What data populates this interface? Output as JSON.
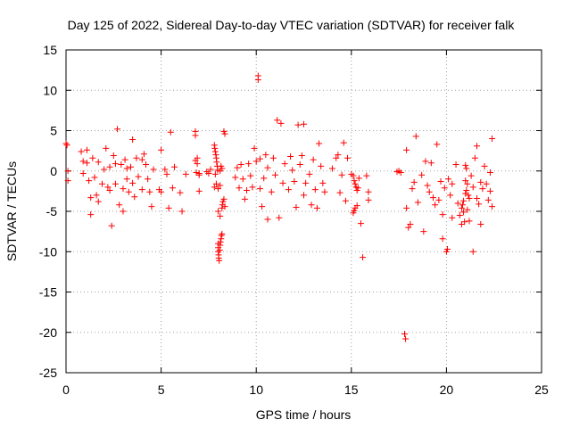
{
  "chart_data": {
    "type": "scatter",
    "title": "Day 125 of 2022, Sidereal Day-to-day VTEC variation (SDTVAR) for receiver falk",
    "xlabel": "GPS time / hours",
    "ylabel": "SDTVAR / TECUs",
    "xlim": [
      0,
      25
    ],
    "ylim": [
      -25,
      15
    ],
    "xticks": [
      0,
      5,
      10,
      15,
      20,
      25
    ],
    "yticks": [
      -25,
      -20,
      -15,
      -10,
      -5,
      0,
      5,
      10,
      15
    ],
    "grid": true,
    "marker": "plus",
    "color": "#ff0000",
    "series": [
      {
        "name": "SDTVAR",
        "points": [
          [
            0.0,
            3.4
          ],
          [
            0.05,
            3.2
          ],
          [
            0.1,
            0.0
          ],
          [
            0.1,
            -1.2
          ],
          [
            0.8,
            2.4
          ],
          [
            0.9,
            1.2
          ],
          [
            0.9,
            -0.3
          ],
          [
            1.1,
            2.6
          ],
          [
            1.1,
            1.0
          ],
          [
            1.2,
            -1.2
          ],
          [
            1.3,
            -3.3
          ],
          [
            1.3,
            -5.4
          ],
          [
            1.4,
            1.6
          ],
          [
            1.5,
            -0.8
          ],
          [
            1.6,
            -3.0
          ],
          [
            1.7,
            -3.8
          ],
          [
            1.7,
            1.1
          ],
          [
            1.9,
            -1.6
          ],
          [
            2.0,
            0.2
          ],
          [
            2.1,
            2.8
          ],
          [
            2.2,
            -2.0
          ],
          [
            2.3,
            -2.4
          ],
          [
            2.3,
            0.5
          ],
          [
            2.4,
            -6.8
          ],
          [
            2.5,
            1.9
          ],
          [
            2.6,
            0.9
          ],
          [
            2.6,
            -1.6
          ],
          [
            2.7,
            5.2
          ],
          [
            2.8,
            -4.2
          ],
          [
            2.9,
            0.8
          ],
          [
            3.0,
            -5.0
          ],
          [
            3.0,
            -2.2
          ],
          [
            3.1,
            1.4
          ],
          [
            3.2,
            0.3
          ],
          [
            3.2,
            -1.0
          ],
          [
            3.3,
            -2.6
          ],
          [
            3.4,
            0.5
          ],
          [
            3.5,
            3.9
          ],
          [
            3.5,
            -1.5
          ],
          [
            3.6,
            -3.2
          ],
          [
            3.7,
            1.6
          ],
          [
            3.8,
            -0.7
          ],
          [
            4.0,
            1.4
          ],
          [
            4.0,
            -2.3
          ],
          [
            4.1,
            2.1
          ],
          [
            4.2,
            0.8
          ],
          [
            4.3,
            -1.0
          ],
          [
            4.4,
            -2.6
          ],
          [
            4.5,
            -4.4
          ],
          [
            4.6,
            0.2
          ],
          [
            4.9,
            -2.3
          ],
          [
            5.0,
            2.6
          ],
          [
            5.0,
            -2.6
          ],
          [
            5.2,
            0.2
          ],
          [
            5.3,
            -0.4
          ],
          [
            5.4,
            -4.6
          ],
          [
            5.5,
            4.8
          ],
          [
            5.6,
            -2.1
          ],
          [
            5.7,
            0.5
          ],
          [
            6.0,
            -2.7
          ],
          [
            6.1,
            -5.0
          ],
          [
            6.3,
            -0.4
          ],
          [
            6.8,
            4.9
          ],
          [
            6.8,
            4.4
          ],
          [
            6.8,
            1.3
          ],
          [
            6.9,
            1.6
          ],
          [
            6.9,
            0.9
          ],
          [
            6.85,
            -0.2
          ],
          [
            7.0,
            -0.5
          ],
          [
            7.0,
            -0.3
          ],
          [
            7.0,
            -2.5
          ],
          [
            7.4,
            -0.1
          ],
          [
            7.5,
            -0.3
          ],
          [
            7.6,
            0.2
          ],
          [
            7.8,
            3.2
          ],
          [
            7.82,
            2.8
          ],
          [
            7.85,
            2.4
          ],
          [
            7.88,
            2.0
          ],
          [
            7.9,
            1.6
          ],
          [
            7.92,
            1.1
          ],
          [
            7.95,
            0.6
          ],
          [
            7.97,
            0.1
          ],
          [
            7.85,
            -0.4
          ],
          [
            7.9,
            -1.6
          ],
          [
            7.8,
            -2.0
          ],
          [
            8.0,
            -9.0
          ],
          [
            8.0,
            -9.5
          ],
          [
            8.0,
            -10.0
          ],
          [
            8.02,
            -10.4
          ],
          [
            8.03,
            -10.8
          ],
          [
            8.05,
            -11.1
          ],
          [
            8.08,
            -9.8
          ],
          [
            8.1,
            -9.2
          ],
          [
            8.12,
            -8.8
          ],
          [
            8.15,
            -8.4
          ],
          [
            8.17,
            -8.0
          ],
          [
            8.2,
            -7.8
          ],
          [
            8.2,
            -4.6
          ],
          [
            8.22,
            -4.2
          ],
          [
            8.25,
            -3.8
          ],
          [
            8.3,
            -3.5
          ],
          [
            8.0,
            -2.2
          ],
          [
            8.1,
            -1.8
          ],
          [
            8.1,
            0.0
          ],
          [
            8.15,
            0.6
          ],
          [
            8.2,
            0.3
          ],
          [
            8.3,
            4.9
          ],
          [
            8.35,
            4.6
          ],
          [
            8.35,
            -4.4
          ],
          [
            8.0,
            -5.0
          ],
          [
            8.1,
            -5.6
          ],
          [
            8.9,
            -0.8
          ],
          [
            9.0,
            0.4
          ],
          [
            9.1,
            -2.1
          ],
          [
            9.2,
            0.8
          ],
          [
            9.3,
            -1.0
          ],
          [
            9.4,
            -3.5
          ],
          [
            9.5,
            -2.4
          ],
          [
            9.6,
            0.9
          ],
          [
            9.7,
            -0.6
          ],
          [
            9.8,
            -2.0
          ],
          [
            9.9,
            2.8
          ],
          [
            10.0,
            1.2
          ],
          [
            10.1,
            11.8
          ],
          [
            10.1,
            11.3
          ],
          [
            10.2,
            1.5
          ],
          [
            10.2,
            -2.2
          ],
          [
            10.3,
            -4.4
          ],
          [
            10.4,
            -0.9
          ],
          [
            10.5,
            2.0
          ],
          [
            10.6,
            -6.0
          ],
          [
            10.6,
            0.4
          ],
          [
            10.8,
            -2.6
          ],
          [
            10.9,
            1.6
          ],
          [
            11.0,
            -0.5
          ],
          [
            11.1,
            6.3
          ],
          [
            11.2,
            -5.8
          ],
          [
            11.3,
            5.9
          ],
          [
            11.4,
            -1.5
          ],
          [
            11.5,
            0.9
          ],
          [
            11.7,
            -2.3
          ],
          [
            11.8,
            1.8
          ],
          [
            11.9,
            0.1
          ],
          [
            12.0,
            -1.3
          ],
          [
            12.1,
            -4.5
          ],
          [
            12.2,
            5.7
          ],
          [
            12.3,
            0.8
          ],
          [
            12.4,
            1.9
          ],
          [
            12.5,
            5.8
          ],
          [
            12.5,
            -3.0
          ],
          [
            12.6,
            -1.5
          ],
          [
            12.8,
            -0.4
          ],
          [
            12.9,
            -4.2
          ],
          [
            13.0,
            1.4
          ],
          [
            13.1,
            -2.3
          ],
          [
            13.2,
            -4.6
          ],
          [
            13.3,
            3.4
          ],
          [
            13.4,
            0.6
          ],
          [
            13.5,
            -1.5
          ],
          [
            13.6,
            -2.6
          ],
          [
            14.0,
            0.3
          ],
          [
            14.2,
            1.6
          ],
          [
            14.3,
            2.0
          ],
          [
            14.4,
            -2.7
          ],
          [
            14.5,
            -0.5
          ],
          [
            14.6,
            3.5
          ],
          [
            14.7,
            -3.7
          ],
          [
            14.8,
            1.6
          ],
          [
            15.0,
            -0.4
          ],
          [
            15.1,
            -0.6
          ],
          [
            15.15,
            -1.2
          ],
          [
            15.2,
            -1.6
          ],
          [
            15.25,
            -2.0
          ],
          [
            15.3,
            -2.4
          ],
          [
            15.35,
            -2.1
          ],
          [
            15.1,
            -5.2
          ],
          [
            15.15,
            -4.9
          ],
          [
            15.2,
            -4.6
          ],
          [
            15.3,
            -4.3
          ],
          [
            15.4,
            -0.9
          ],
          [
            15.5,
            -6.5
          ],
          [
            15.6,
            -10.7
          ],
          [
            15.8,
            -0.6
          ],
          [
            15.9,
            -2.6
          ],
          [
            15.9,
            -3.6
          ],
          [
            17.4,
            -0.1
          ],
          [
            17.5,
            0.0
          ],
          [
            17.6,
            -0.2
          ],
          [
            17.8,
            -20.2
          ],
          [
            17.85,
            -20.8
          ],
          [
            17.9,
            2.6
          ],
          [
            17.9,
            -4.6
          ],
          [
            18.0,
            -7.0
          ],
          [
            18.1,
            -6.6
          ],
          [
            18.2,
            -2.2
          ],
          [
            18.3,
            -1.4
          ],
          [
            18.4,
            4.3
          ],
          [
            18.5,
            -3.9
          ],
          [
            18.7,
            -0.5
          ],
          [
            18.8,
            -7.5
          ],
          [
            18.9,
            1.2
          ],
          [
            19.0,
            -1.8
          ],
          [
            19.1,
            -2.6
          ],
          [
            19.2,
            1.0
          ],
          [
            19.3,
            -3.3
          ],
          [
            19.4,
            -4.2
          ],
          [
            19.5,
            3.3
          ],
          [
            19.6,
            -3.6
          ],
          [
            19.7,
            -1.3
          ],
          [
            19.8,
            -8.4
          ],
          [
            19.8,
            -5.4
          ],
          [
            19.9,
            -2.1
          ],
          [
            20.0,
            -10.0
          ],
          [
            20.05,
            -9.7
          ],
          [
            20.1,
            -1.0
          ],
          [
            20.2,
            -3.0
          ],
          [
            20.3,
            -1.6
          ],
          [
            20.3,
            -5.8
          ],
          [
            20.5,
            0.8
          ],
          [
            20.6,
            -4.0
          ],
          [
            20.7,
            -5.5
          ],
          [
            20.8,
            -6.6
          ],
          [
            20.8,
            -4.6
          ],
          [
            20.85,
            -4.2
          ],
          [
            20.9,
            -3.7
          ],
          [
            20.9,
            -5.1
          ],
          [
            20.95,
            -6.3
          ],
          [
            21.0,
            -2.8
          ],
          [
            21.0,
            -1.2
          ],
          [
            21.0,
            0.7
          ],
          [
            21.05,
            0.3
          ],
          [
            21.05,
            -2.4
          ],
          [
            21.1,
            -1.6
          ],
          [
            21.1,
            -4.8
          ],
          [
            21.15,
            -3.0
          ],
          [
            21.2,
            -6.2
          ],
          [
            21.2,
            -3.4
          ],
          [
            21.3,
            -0.6
          ],
          [
            21.4,
            -2.0
          ],
          [
            21.4,
            -10.0
          ],
          [
            21.5,
            1.6
          ],
          [
            21.6,
            -3.4
          ],
          [
            21.6,
            3.1
          ],
          [
            21.7,
            -4.1
          ],
          [
            21.8,
            -6.6
          ],
          [
            21.8,
            -1.4
          ],
          [
            21.9,
            -2.2
          ],
          [
            22.0,
            0.6
          ],
          [
            22.1,
            -1.6
          ],
          [
            22.2,
            -3.6
          ],
          [
            22.3,
            -0.2
          ],
          [
            22.3,
            -2.5
          ],
          [
            22.4,
            4.0
          ],
          [
            22.4,
            -4.4
          ]
        ]
      }
    ]
  }
}
